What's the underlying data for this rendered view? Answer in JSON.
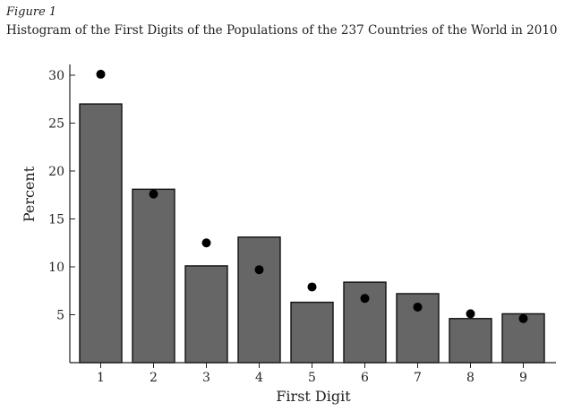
{
  "figure": {
    "label": "Figure 1",
    "title": "Histogram of the First Digits of the Populations of the 237 Countries of the World in 2010"
  },
  "chart_data": {
    "type": "bar",
    "xlabel": "First Digit",
    "ylabel": "Percent",
    "ylim": [
      0,
      30
    ],
    "yticks": [
      5,
      10,
      15,
      20,
      25,
      30
    ],
    "categories": [
      "1",
      "2",
      "3",
      "4",
      "5",
      "6",
      "7",
      "8",
      "9"
    ],
    "series": [
      {
        "values": [
          27.0,
          18.1,
          10.1,
          13.1,
          6.3,
          8.4,
          7.2,
          4.6,
          5.1
        ],
        "style": "bar",
        "color": "#666666"
      },
      {
        "values": [
          30.1,
          17.6,
          12.5,
          9.7,
          7.9,
          6.7,
          5.8,
          5.1,
          4.6
        ],
        "style": "dot",
        "color": "#000000"
      }
    ],
    "grid": false,
    "legend": "none"
  }
}
